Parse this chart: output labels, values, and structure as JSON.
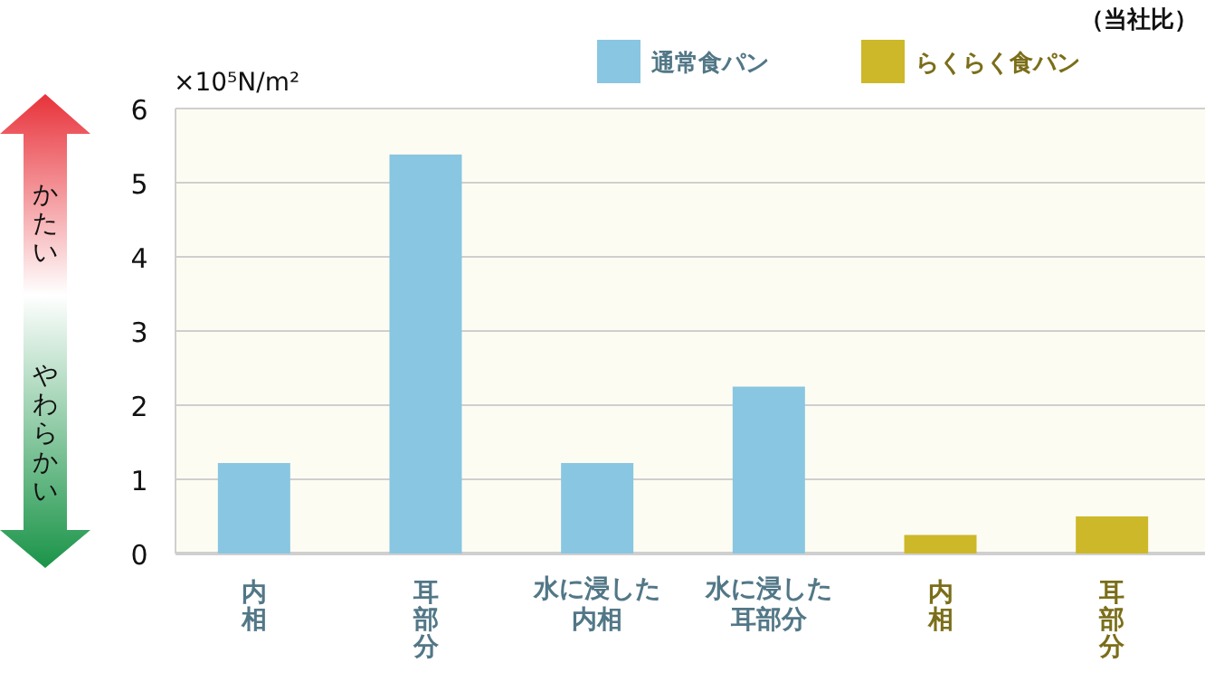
{
  "chart_data": {
    "type": "bar",
    "ylabel": "×10⁵N/m²",
    "categories": [
      "内相",
      "耳部分",
      "水に浸した内相",
      "水に浸した耳部分",
      "内相",
      "耳部分"
    ],
    "series": [
      {
        "name": "通常食パン",
        "color": "#89c6e1",
        "values": [
          1.22,
          5.38,
          1.22,
          2.25,
          null,
          null
        ]
      },
      {
        "name": "らくらく食パン",
        "color": "#cdb829",
        "values": [
          null,
          null,
          null,
          null,
          0.25,
          0.5
        ]
      }
    ],
    "ylim": [
      0,
      6
    ],
    "yticks": [
      0,
      1,
      2,
      3,
      4,
      5,
      6
    ],
    "grid": "y",
    "legend": "top right",
    "annotations": [
      "（当社比）",
      "かたい",
      "やわらかい"
    ]
  }
}
